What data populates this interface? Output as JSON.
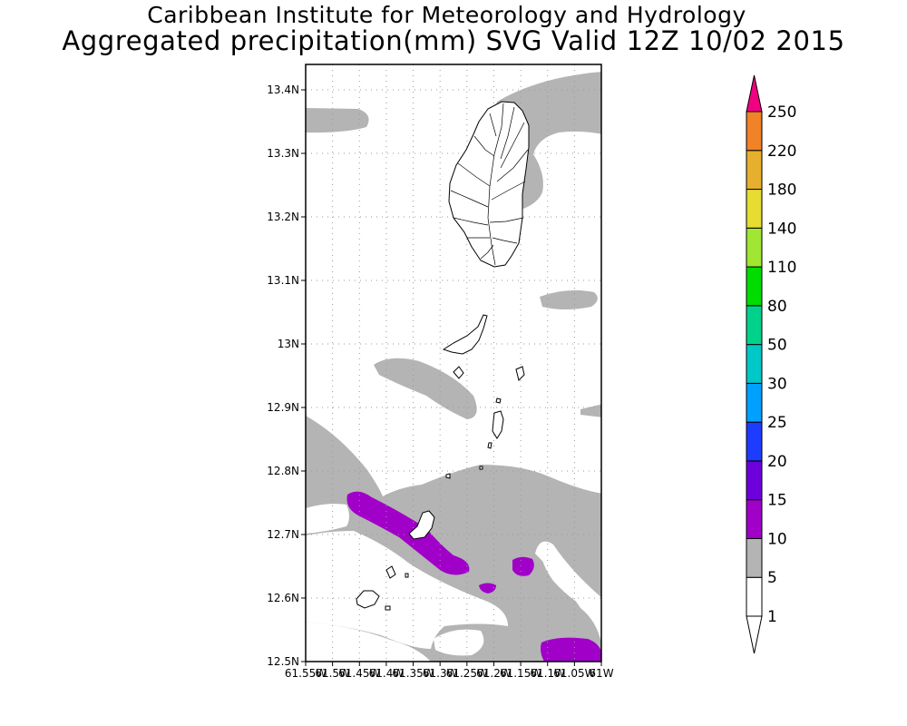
{
  "titles": {
    "line1": "Caribbean Institute for Meteorology and Hydrology",
    "line2": "Aggregated precipitation(mm) SVG Valid 12Z 10/02 2015"
  },
  "map": {
    "lat_range": [
      12.5,
      13.44
    ],
    "lon_range": [
      -61.55,
      -61.0
    ],
    "lat_ticks": [
      "13.4N",
      "13.3N",
      "13.2N",
      "13.1N",
      "13N",
      "12.9N",
      "12.8N",
      "12.7N",
      "12.6N",
      "12.5N"
    ],
    "lon_ticks": [
      "61.55W",
      "61.5W",
      "61.45W",
      "61.4W",
      "61.35W",
      "61.3W",
      "61.25W",
      "61.2W",
      "61.15W",
      "61.1W",
      "61.05W",
      "61W"
    ],
    "grid": true
  },
  "colorbar": {
    "labels": [
      "1",
      "5",
      "10",
      "15",
      "20",
      "25",
      "30",
      "50",
      "80",
      "110",
      "140",
      "180",
      "220",
      "250"
    ],
    "colors": {
      "1-5": "#ffffff",
      "5-10": "#b4b4b4",
      "10-15": "#a000c8",
      "15-20": "#6e00dc",
      "20-25": "#1e3cff",
      "25-30": "#00a0ff",
      "30-50": "#00c8c8",
      "50-80": "#00d28c",
      "80-110": "#00dc00",
      "110-140": "#a0e632",
      "140-180": "#e6dc32",
      "180-220": "#e6af2d",
      "220-250": "#f08228",
      "250+": "#fa3c3c",
      "top": "#f00082"
    }
  }
}
